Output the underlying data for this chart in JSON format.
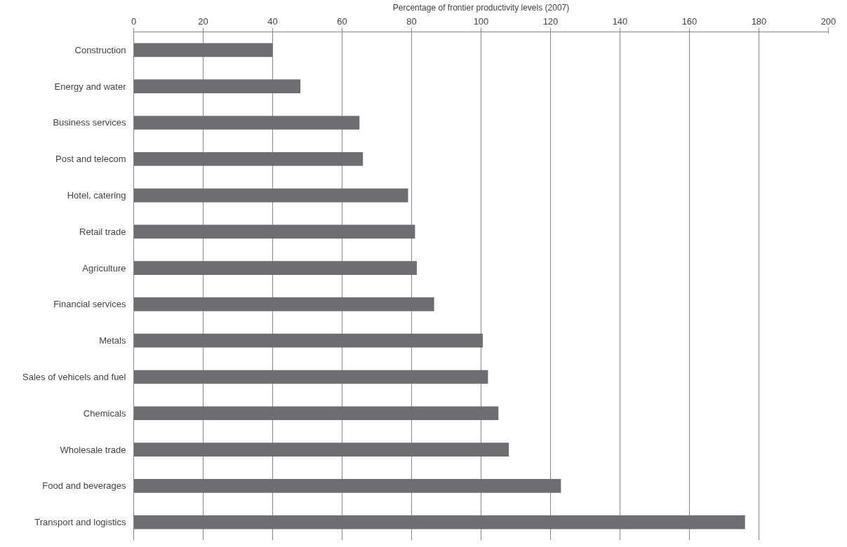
{
  "chart_data": {
    "type": "bar",
    "orientation": "horizontal",
    "xlabel": "Percentage of frontier productivity levels (2007)",
    "categories": [
      "Construction",
      "Energy and water",
      "Business services",
      "Post and telecom",
      "Hotel, catering",
      "Retail trade",
      "Agriculture",
      "Financial services",
      "Metals",
      "Sales of vehicels and fuel",
      "Chemicals",
      "Wholesale trade",
      "Food and beverages",
      "Transport and logistics"
    ],
    "values": [
      40,
      48,
      65,
      66,
      79,
      81,
      81.5,
      86.5,
      100.5,
      102,
      105,
      108,
      123,
      176
    ],
    "color": "#6d6e71",
    "xlim": [
      0,
      200
    ],
    "xticks": [
      0,
      20,
      40,
      60,
      80,
      100,
      120,
      140,
      160,
      180,
      200
    ],
    "grid": "x"
  }
}
